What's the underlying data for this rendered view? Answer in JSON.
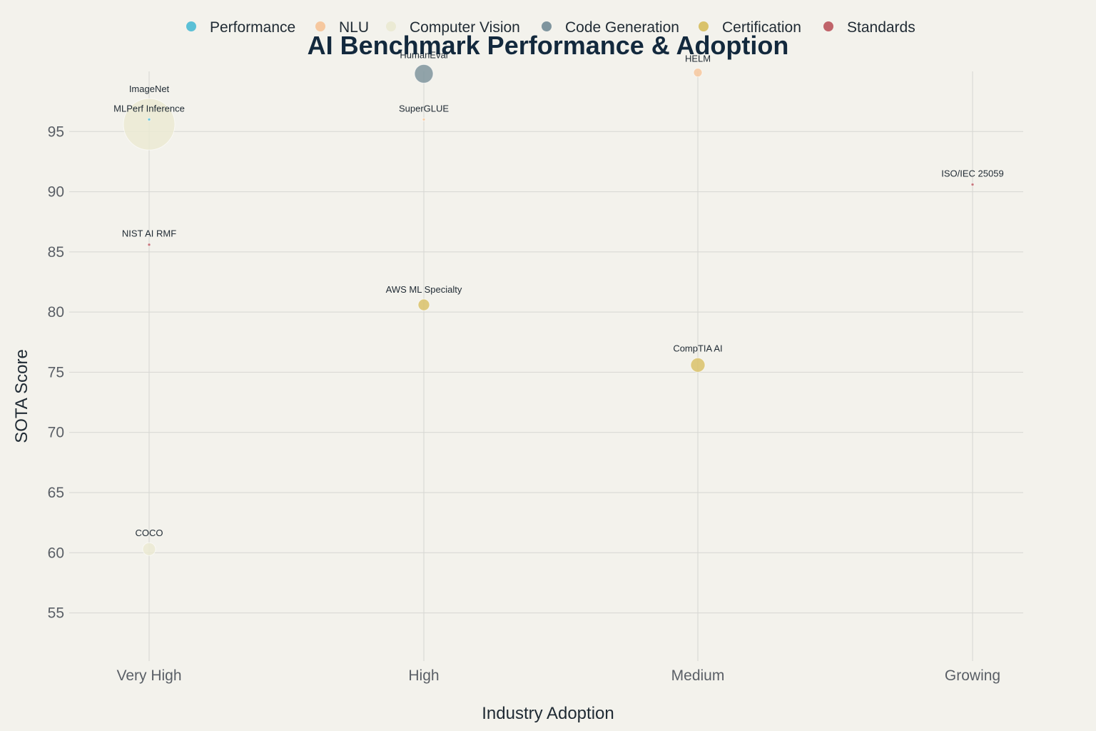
{
  "chart_data": {
    "type": "scatter",
    "title": "AI Benchmark Performance & Adoption",
    "xlabel": "Industry Adoption",
    "ylabel": "SOTA Score",
    "x_categories": [
      "Very High",
      "High",
      "Medium",
      "Growing"
    ],
    "ylim": [
      51,
      100
    ],
    "y_ticks": [
      55,
      60,
      65,
      70,
      75,
      80,
      85,
      90,
      95
    ],
    "grid": true,
    "legend_position": "top",
    "series": [
      {
        "name": "Performance",
        "color": "#5bc0d6",
        "points": [
          {
            "label": "MLPerf Inference",
            "x": "Very High",
            "y": 96.0,
            "size": 2
          }
        ]
      },
      {
        "name": "NLU",
        "color": "#f6c89f",
        "points": [
          {
            "label": "SuperGLUE",
            "x": "High",
            "y": 96.0,
            "size": 1
          },
          {
            "label": "HELM",
            "x": "Medium",
            "y": 99.9,
            "size": 6
          }
        ]
      },
      {
        "name": "Computer Vision",
        "color": "#ebead4",
        "points": [
          {
            "label": "ImageNet",
            "x": "Very High",
            "y": 95.6,
            "size": 36
          },
          {
            "label": "COCO",
            "x": "Very High",
            "y": 60.3,
            "size": 9
          }
        ]
      },
      {
        "name": "Code Generation",
        "color": "#7f959e",
        "points": [
          {
            "label": "HumanEval",
            "x": "High",
            "y": 99.8,
            "size": 13
          }
        ]
      },
      {
        "name": "Certification",
        "color": "#d9c26a",
        "points": [
          {
            "label": "AWS ML Specialty",
            "x": "High",
            "y": 80.6,
            "size": 8
          },
          {
            "label": "CompTIA AI",
            "x": "Medium",
            "y": 75.6,
            "size": 10
          }
        ]
      },
      {
        "name": "Standards",
        "color": "#c0646a",
        "points": [
          {
            "label": "NIST AI RMF",
            "x": "Very High",
            "y": 85.6,
            "size": 1
          },
          {
            "label": "ISO/IEC 25059",
            "x": "Growing",
            "y": 90.6,
            "size": 1
          }
        ]
      }
    ]
  }
}
